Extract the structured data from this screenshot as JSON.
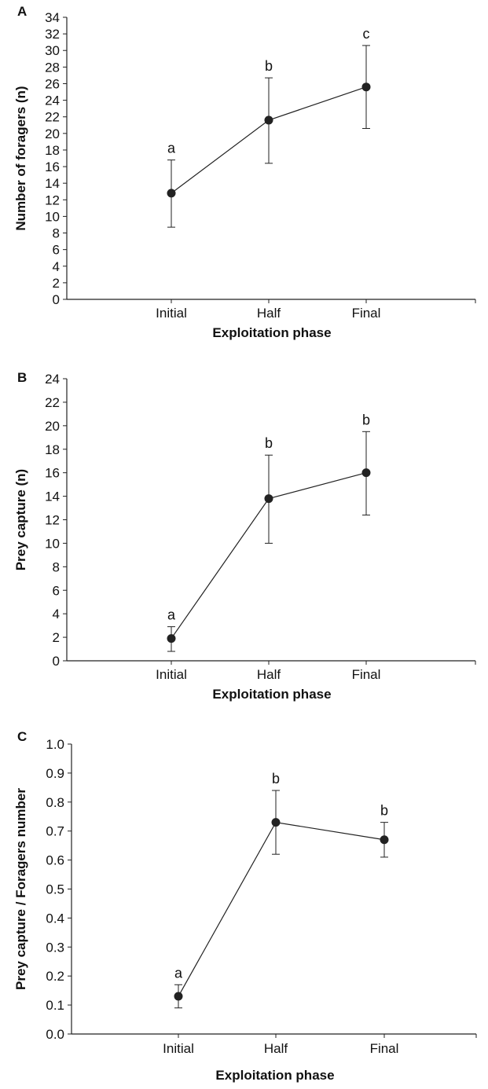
{
  "chart_data": [
    {
      "type": "line",
      "panel_label": "A",
      "categories": [
        "Initial",
        "Half",
        "Final"
      ],
      "values": [
        12.8,
        21.6,
        25.6
      ],
      "error_low": [
        8.7,
        16.4,
        20.6
      ],
      "error_high": [
        16.8,
        26.7,
        30.6
      ],
      "significance": [
        "a",
        "b",
        "c"
      ],
      "xlabel": "Exploitation phase",
      "ylabel": "Number of foragers (n)",
      "ylim": [
        0,
        34
      ],
      "yticks": [
        0,
        2,
        4,
        6,
        8,
        10,
        12,
        14,
        16,
        18,
        20,
        22,
        24,
        26,
        28,
        30,
        32,
        34
      ],
      "decimals": 0
    },
    {
      "type": "line",
      "panel_label": "B",
      "categories": [
        "Initial",
        "Half",
        "Final"
      ],
      "values": [
        1.9,
        13.8,
        16.0
      ],
      "error_low": [
        0.8,
        10.0,
        12.4
      ],
      "error_high": [
        2.9,
        17.5,
        19.5
      ],
      "significance": [
        "a",
        "b",
        "b"
      ],
      "xlabel": "Exploitation phase",
      "ylabel": "Prey capture (n)",
      "ylim": [
        0,
        24
      ],
      "yticks": [
        0,
        2,
        4,
        6,
        8,
        10,
        12,
        14,
        16,
        18,
        20,
        22,
        24
      ],
      "decimals": 0
    },
    {
      "type": "line",
      "panel_label": "C",
      "categories": [
        "Initial",
        "Half",
        "Final"
      ],
      "values": [
        0.13,
        0.73,
        0.67
      ],
      "error_low": [
        0.09,
        0.62,
        0.61
      ],
      "error_high": [
        0.17,
        0.84,
        0.73
      ],
      "significance": [
        "a",
        "b",
        "b"
      ],
      "xlabel": "Exploitation phase",
      "ylabel": "Prey capture / Foragers number",
      "ylim": [
        0,
        1.0
      ],
      "yticks": [
        0.0,
        0.1,
        0.2,
        0.3,
        0.4,
        0.5,
        0.6,
        0.7,
        0.8,
        0.9,
        1.0
      ],
      "decimals": 1
    }
  ]
}
